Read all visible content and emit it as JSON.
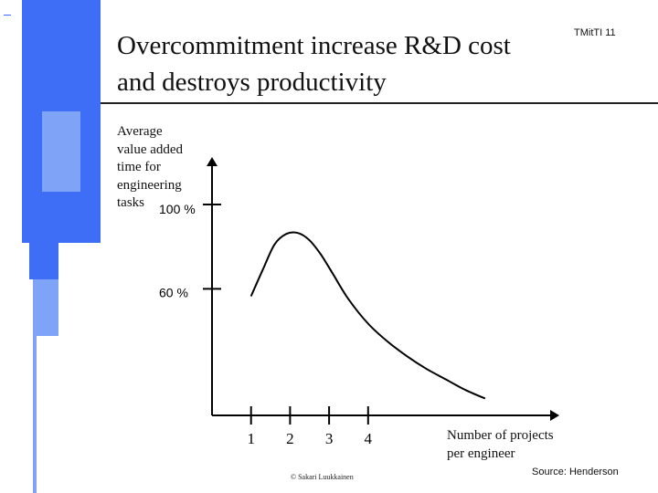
{
  "slide": {
    "title_lines": [
      "Overcommitment increase R&D cost",
      "and destroys productivity"
    ],
    "slide_id": "TMitTI 11",
    "source": "Source: Henderson",
    "copyright": "© Sakari Luukkainen"
  },
  "colors": {
    "accent_blue": "#3d6ef5",
    "accent_blue_light": "#7fa3f7",
    "axis": "#000000"
  },
  "chart_data": {
    "type": "line",
    "title": "",
    "ylabel_lines": [
      "Average",
      "value added",
      "time for",
      "engineering",
      "tasks"
    ],
    "xlabel_lines": [
      "Number of projects",
      "per engineer"
    ],
    "xticks": [
      "1",
      "2",
      "3",
      "4"
    ],
    "yticks": [
      {
        "label": "100 %",
        "value": 100
      },
      {
        "label": "60 %",
        "value": 60
      }
    ],
    "xlim": [
      0,
      7.7
    ],
    "ylim": [
      0,
      128
    ],
    "grid": false,
    "series": [
      {
        "x": [
          1.0,
          1.3,
          1.6,
          1.9,
          2.2,
          2.5,
          2.8,
          3.1,
          3.5,
          4.0,
          4.5,
          5.0,
          5.5,
          6.0,
          6.5,
          7.0
        ],
        "y": [
          56.5,
          69,
          81,
          86,
          86.5,
          83,
          76,
          67,
          55,
          43.5,
          35,
          28,
          22,
          17,
          12,
          8
        ]
      }
    ]
  }
}
